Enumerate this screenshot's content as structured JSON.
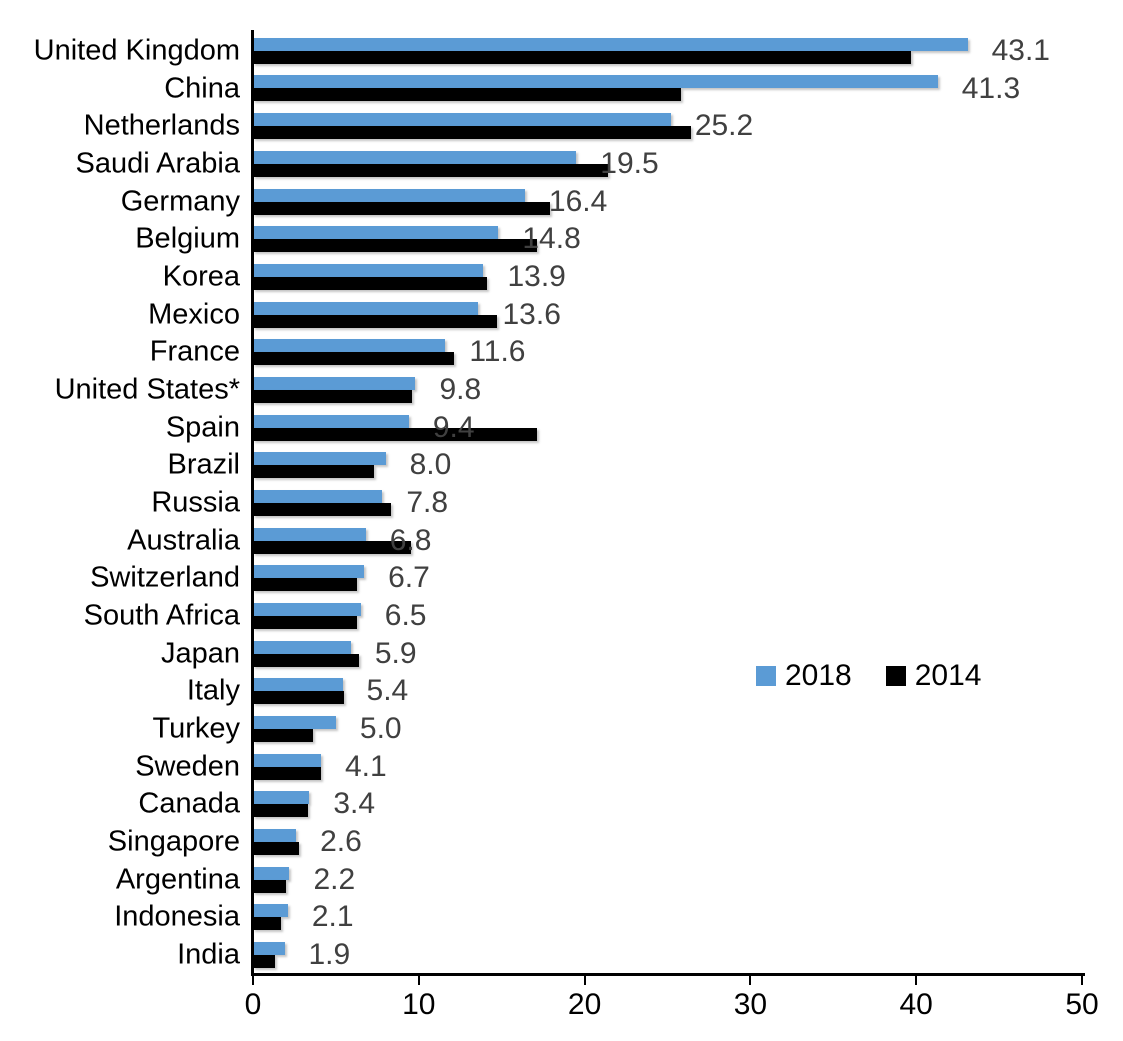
{
  "chart_data": {
    "type": "bar",
    "orientation": "horizontal",
    "title": "",
    "xlabel": "",
    "ylabel": "",
    "xlim": [
      0,
      50
    ],
    "x_ticks": [
      0,
      10,
      20,
      30,
      40,
      50
    ],
    "grid": false,
    "legend_position": "middle-right",
    "value_label_series": "2018",
    "value_label_color": "#404040",
    "categories": [
      "United Kingdom",
      "China",
      "Netherlands",
      "Saudi Arabia",
      "Germany",
      "Belgium",
      "Korea",
      "Mexico",
      "France",
      "United States*",
      "Spain",
      "Brazil",
      "Russia",
      "Australia",
      "Switzerland",
      "South Africa",
      "Japan",
      "Italy",
      "Turkey",
      "Sweden",
      "Canada",
      "Singapore",
      "Argentina",
      "Indonesia",
      "India"
    ],
    "series": [
      {
        "name": "2018",
        "color": "#5B9BD5",
        "values": [
          43.1,
          41.3,
          25.2,
          19.5,
          16.4,
          14.8,
          13.9,
          13.6,
          11.6,
          9.8,
          9.4,
          8.0,
          7.8,
          6.8,
          6.7,
          6.5,
          5.9,
          5.4,
          5.0,
          4.1,
          3.4,
          2.6,
          2.2,
          2.1,
          1.9
        ]
      },
      {
        "name": "2014",
        "color": "#000000",
        "values": [
          39.7,
          25.8,
          26.4,
          21.4,
          17.9,
          17.1,
          14.1,
          14.7,
          12.1,
          9.6,
          17.1,
          7.3,
          8.3,
          9.5,
          6.3,
          6.3,
          6.4,
          5.5,
          3.6,
          4.1,
          3.3,
          2.8,
          2.0,
          1.7,
          1.3
        ]
      }
    ],
    "value_labels": [
      "43.1",
      "41.3",
      "25.2",
      "19.5",
      "16.4",
      "14.8",
      "13.9",
      "13.6",
      "11.6",
      "9.8",
      "9.4",
      "8.0",
      "7.8",
      "6.8",
      "6.7",
      "6.5",
      "5.9",
      "5.4",
      "5.0",
      "4.1",
      "3.4",
      "2.6",
      "2.2",
      "2.1",
      "1.9"
    ],
    "legend": [
      {
        "label": "2018",
        "color": "#5B9BD5"
      },
      {
        "label": "2014",
        "color": "#000000"
      }
    ]
  }
}
